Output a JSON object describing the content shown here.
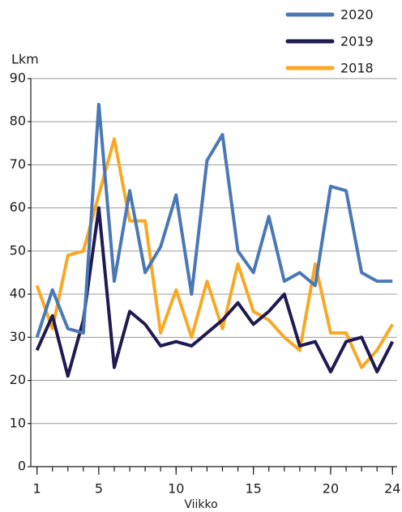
{
  "chart_data": {
    "type": "line",
    "y_label": "Lkm",
    "x_label": "Viikko",
    "x": [
      1,
      2,
      3,
      4,
      5,
      6,
      7,
      8,
      9,
      10,
      11,
      12,
      13,
      14,
      15,
      16,
      17,
      18,
      19,
      20,
      21,
      22,
      23,
      24
    ],
    "series": [
      {
        "name": "2020",
        "color": "#4a78b5",
        "values": [
          30,
          41,
          32,
          31,
          84,
          43,
          64,
          45,
          51,
          63,
          40,
          71,
          77,
          50,
          45,
          58,
          43,
          45,
          42,
          65,
          64,
          45,
          43,
          43
        ]
      },
      {
        "name": "2019",
        "color": "#1f1a4f",
        "values": [
          27,
          35,
          21,
          34,
          60,
          23,
          36,
          33,
          28,
          29,
          28,
          31,
          34,
          38,
          33,
          36,
          40,
          28,
          29,
          22,
          29,
          30,
          22,
          29
        ]
      },
      {
        "name": "2018",
        "color": "#f9a825",
        "values": [
          42,
          32,
          49,
          50,
          63,
          76,
          57,
          57,
          31,
          41,
          30,
          43,
          32,
          47,
          36,
          34,
          30,
          27,
          47,
          31,
          31,
          23,
          27,
          33
        ]
      }
    ],
    "xlim": [
      0.6,
      24.3
    ],
    "xticks": [
      1,
      5,
      10,
      15,
      20,
      24
    ],
    "ylim": [
      0,
      90
    ],
    "yticks": [
      0,
      10,
      20,
      30,
      40,
      50,
      60,
      70,
      80,
      90
    ],
    "grid": true,
    "legend": "top-right"
  }
}
